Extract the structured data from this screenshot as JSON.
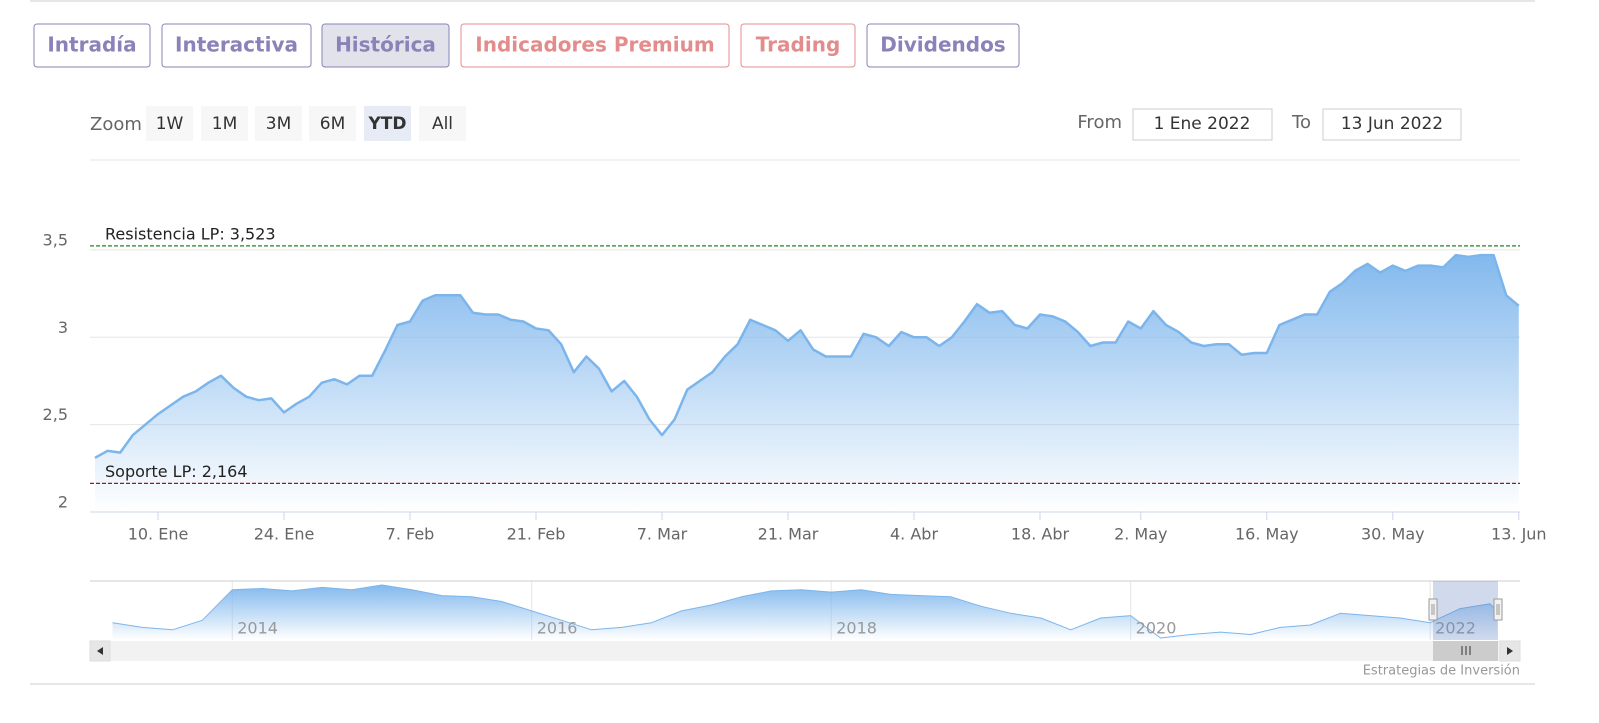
{
  "tabs": [
    "Intradía",
    "Interactiva",
    "Histórica",
    "Indicadores Premium",
    "Trading",
    "Dividendos"
  ],
  "zoom": {
    "label": "Zoom",
    "buttons": [
      "1W",
      "1M",
      "3M",
      "6M",
      "YTD",
      "All"
    ]
  },
  "range": {
    "from_label": "From",
    "from": "1 Ene 2022",
    "to_label": "To",
    "to": "13 Jun 2022"
  },
  "credits": "Estrategias de Inversión",
  "chart_data": [
    {
      "type": "area",
      "color": "#7cb5ec",
      "categories": [
        null,
        null,
        null,
        null,
        null,
        "10. Ene",
        null,
        null,
        null,
        null,
        null,
        null,
        null,
        null,
        null,
        "24. Ene",
        null,
        null,
        null,
        null,
        null,
        null,
        null,
        null,
        null,
        "7. Feb",
        null,
        null,
        null,
        null,
        null,
        null,
        null,
        null,
        null,
        "21. Feb",
        null,
        null,
        null,
        null,
        null,
        null,
        null,
        null,
        null,
        "7. Mar",
        null,
        null,
        null,
        null,
        null,
        null,
        null,
        null,
        null,
        "21. Mar",
        null,
        null,
        null,
        null,
        null,
        null,
        null,
        null,
        null,
        "4. Abr",
        null,
        null,
        null,
        null,
        null,
        null,
        null,
        null,
        null,
        "18. Abr",
        null,
        null,
        null,
        null,
        null,
        null,
        null,
        "2. May",
        null,
        null,
        null,
        null,
        null,
        null,
        null,
        null,
        null,
        "16. May",
        null,
        null,
        null,
        null,
        null,
        null,
        null,
        null,
        null,
        "30. May",
        null,
        null,
        null,
        null,
        null,
        null,
        null,
        null,
        null,
        "13. Jun"
      ],
      "values": [
        2.31,
        2.35,
        2.34,
        2.44,
        2.5,
        2.56,
        2.61,
        2.66,
        2.69,
        2.74,
        2.78,
        2.71,
        2.66,
        2.64,
        2.65,
        2.57,
        2.62,
        2.66,
        2.74,
        2.76,
        2.73,
        2.78,
        2.78,
        2.92,
        3.07,
        3.09,
        3.21,
        3.24,
        3.24,
        3.24,
        3.14,
        3.13,
        3.13,
        3.1,
        3.09,
        3.05,
        3.04,
        2.96,
        2.8,
        2.89,
        2.82,
        2.69,
        2.75,
        2.66,
        2.53,
        2.44,
        2.53,
        2.7,
        2.75,
        2.8,
        2.89,
        2.96,
        3.1,
        3.07,
        3.04,
        2.98,
        3.04,
        2.93,
        2.89,
        2.89,
        2.89,
        3.02,
        3.0,
        2.95,
        3.03,
        3.0,
        3.0,
        2.95,
        3.0,
        3.09,
        3.19,
        3.14,
        3.15,
        3.07,
        3.05,
        3.13,
        3.12,
        3.09,
        3.03,
        2.95,
        2.97,
        2.97,
        3.09,
        3.05,
        3.15,
        3.07,
        3.03,
        2.97,
        2.95,
        2.96,
        2.96,
        2.9,
        2.91,
        2.91,
        3.07,
        3.1,
        3.13,
        3.13,
        3.26,
        3.31,
        3.38,
        3.42,
        3.37,
        3.41,
        3.38,
        3.41,
        3.41,
        3.4,
        3.47,
        3.46,
        3.47,
        3.47,
        3.24,
        3.18
      ],
      "ylim": [
        2,
        3.9
      ],
      "yticks": [
        2,
        {
          "value": 2.5,
          "label": "2,5"
        },
        3,
        {
          "value": 3.5,
          "label": "3,5"
        }
      ],
      "grid": true,
      "plot_lines": [
        {
          "label": "Resistencia LP: 3,523",
          "value": 3.523,
          "color": "#1f8a1f"
        },
        {
          "label": "Soporte LP: 2,164",
          "value": 2.164,
          "color": "#a01030"
        }
      ]
    },
    {
      "type": "area",
      "color": "#7cb5ec",
      "x": [
        2013.2,
        2013.4,
        2013.6,
        2013.8,
        2014.0,
        2014.2,
        2014.4,
        2014.6,
        2014.8,
        2015.0,
        2015.2,
        2015.4,
        2015.6,
        2015.8,
        2016.0,
        2016.2,
        2016.4,
        2016.6,
        2016.8,
        2017.0,
        2017.2,
        2017.4,
        2017.6,
        2017.8,
        2018.0,
        2018.2,
        2018.4,
        2018.6,
        2018.8,
        2019.0,
        2019.2,
        2019.4,
        2019.6,
        2019.8,
        2020.0,
        2020.2,
        2020.4,
        2020.6,
        2020.8,
        2021.0,
        2021.2,
        2021.4,
        2021.6,
        2021.8,
        2022.0,
        2022.2,
        2022.4,
        2022.45
      ],
      "values": [
        2.28,
        2.0,
        1.86,
        2.42,
        4.24,
        4.31,
        4.17,
        4.38,
        4.24,
        4.52,
        4.24,
        3.89,
        3.82,
        3.54,
        2.98,
        2.42,
        1.86,
        2.0,
        2.28,
        2.98,
        3.33,
        3.82,
        4.17,
        4.24,
        4.1,
        4.24,
        3.96,
        3.89,
        3.82,
        3.26,
        2.84,
        2.56,
        1.86,
        2.56,
        2.7,
        1.37,
        1.58,
        1.72,
        1.58,
        2.0,
        2.14,
        2.84,
        2.7,
        2.56,
        2.28,
        3.12,
        3.4,
        2.98
      ],
      "xlim": [
        2013.05,
        2022.6
      ],
      "xticks": [
        2014,
        2016,
        2018,
        2020,
        2022
      ]
    }
  ]
}
